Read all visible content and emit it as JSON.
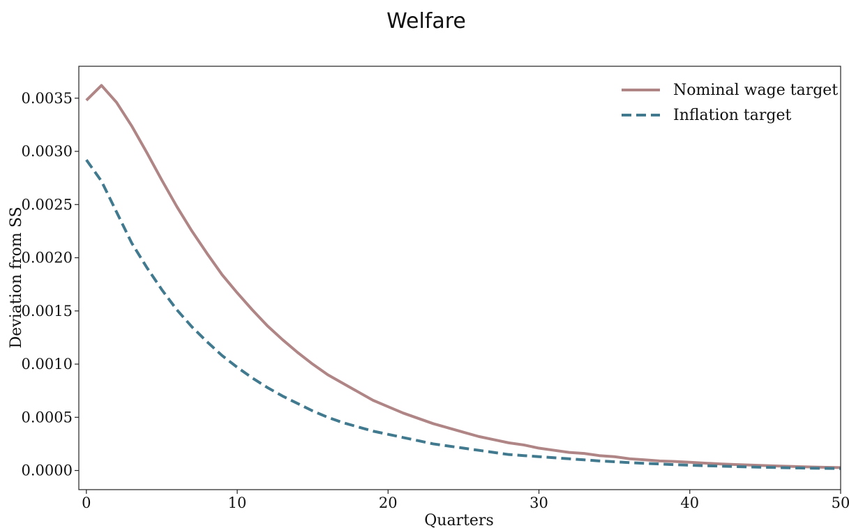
{
  "chart_data": {
    "type": "line",
    "title": "Welfare",
    "xlabel": "Quarters",
    "ylabel": "Deviation from SS",
    "xlim": [
      -0.5,
      50
    ],
    "ylim": [
      -0.00018,
      0.0038
    ],
    "xticks": [
      0,
      10,
      20,
      30,
      40,
      50
    ],
    "xtick_labels": [
      "0",
      "10",
      "20",
      "30",
      "40",
      "50"
    ],
    "yticks": [
      0,
      0.0005,
      0.001,
      0.0015,
      0.002,
      0.0025,
      0.003,
      0.0035
    ],
    "ytick_labels": [
      "0.0000",
      "0.0005",
      "0.0010",
      "0.0015",
      "0.0020",
      "0.0025",
      "0.0030",
      "0.0035"
    ],
    "grid": false,
    "legend_position": "top-right",
    "series": [
      {
        "name": "Nominal wage target",
        "color": "#b08585",
        "style": "solid",
        "x": [
          0,
          1,
          2,
          3,
          4,
          5,
          6,
          7,
          8,
          9,
          10,
          11,
          12,
          13,
          14,
          15,
          16,
          17,
          18,
          19,
          20,
          21,
          22,
          23,
          24,
          25,
          26,
          27,
          28,
          29,
          30,
          31,
          32,
          33,
          34,
          35,
          36,
          37,
          38,
          39,
          40,
          41,
          42,
          43,
          44,
          45,
          46,
          47,
          48,
          49,
          50
        ],
        "values": [
          0.00348,
          0.00362,
          0.00346,
          0.00324,
          0.00299,
          0.00273,
          0.00248,
          0.00225,
          0.00204,
          0.00184,
          0.00167,
          0.00151,
          0.00136,
          0.00123,
          0.00111,
          0.001,
          0.0009,
          0.00082,
          0.00074,
          0.00066,
          0.0006,
          0.00054,
          0.00049,
          0.00044,
          0.0004,
          0.00036,
          0.00032,
          0.00029,
          0.00026,
          0.00024,
          0.00021,
          0.00019,
          0.00017,
          0.00016,
          0.00014,
          0.00013,
          0.00011,
          0.0001,
          9e-05,
          8.5e-05,
          7.7e-05,
          6.9e-05,
          6.2e-05,
          5.6e-05,
          5.1e-05,
          4.6e-05,
          4.1e-05,
          3.7e-05,
          3.3e-05,
          3e-05,
          2.7e-05
        ]
      },
      {
        "name": "Inflation target",
        "color": "#417a8f",
        "style": "dashed",
        "x": [
          0,
          1,
          2,
          3,
          4,
          5,
          6,
          7,
          8,
          9,
          10,
          11,
          12,
          13,
          14,
          15,
          16,
          17,
          18,
          19,
          20,
          21,
          22,
          23,
          24,
          25,
          26,
          27,
          28,
          29,
          30,
          31,
          32,
          33,
          34,
          35,
          36,
          37,
          38,
          39,
          40,
          41,
          42,
          43,
          44,
          45,
          46,
          47,
          48,
          49,
          50
        ],
        "values": [
          0.00292,
          0.00272,
          0.00243,
          0.00214,
          0.00191,
          0.0017,
          0.00151,
          0.00135,
          0.00121,
          0.00108,
          0.00097,
          0.00087,
          0.00078,
          0.0007,
          0.00063,
          0.00056,
          0.0005,
          0.00045,
          0.00041,
          0.00037,
          0.00034,
          0.00031,
          0.00028,
          0.00025,
          0.00023,
          0.00021,
          0.00019,
          0.00017,
          0.00015,
          0.00014,
          0.00013,
          0.00012,
          0.00011,
          0.0001,
          9e-05,
          8.2e-05,
          7.4e-05,
          6.7e-05,
          6.1e-05,
          5.5e-05,
          5e-05,
          4.5e-05,
          4.1e-05,
          3.7e-05,
          3.3e-05,
          3e-05,
          2.7e-05,
          2.4e-05,
          2.2e-05,
          2e-05,
          1.8e-05
        ]
      }
    ]
  }
}
